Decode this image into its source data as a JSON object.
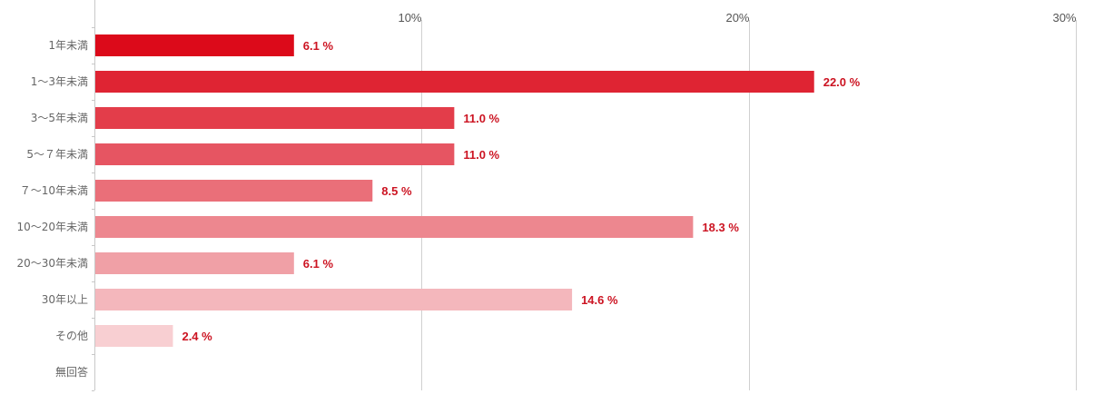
{
  "chart_data": {
    "type": "bar",
    "orientation": "horizontal",
    "categories": [
      "1年未満",
      "1〜3年未満",
      "3〜5年未満",
      "5〜７年未満",
      "７〜10年未満",
      "10〜20年未満",
      "20〜30年未満",
      "30年以上",
      "その他",
      "無回答"
    ],
    "values": [
      6.1,
      22.0,
      11.0,
      11.0,
      8.5,
      18.3,
      6.1,
      14.6,
      2.4,
      null
    ],
    "value_labels": [
      "6.1 %",
      "22.0 %",
      "11.0 %",
      "11.0 %",
      "8.5 %",
      "18.3 %",
      "6.1 %",
      "14.6 %",
      "2.4 %",
      ""
    ],
    "x_ticks": [
      10,
      20,
      30
    ],
    "x_tick_labels": [
      "10%",
      "20%",
      "30%"
    ],
    "xlim": [
      0,
      30
    ],
    "x_axis_position": "top",
    "grid": true,
    "title": "",
    "xlabel": "",
    "ylabel": "",
    "bar_colors": [
      "#dc0a1a",
      "#df2433",
      "#e33d4a",
      "#e65562",
      "#ea6f79",
      "#ed878f",
      "#f0a0a6",
      "#f4b7bc",
      "#f8cfd2",
      "#fbe3e5"
    ],
    "value_label_color": "#cc1422",
    "gridline_color": "#d0d0d0",
    "axis_color": "#c8c8c8"
  }
}
